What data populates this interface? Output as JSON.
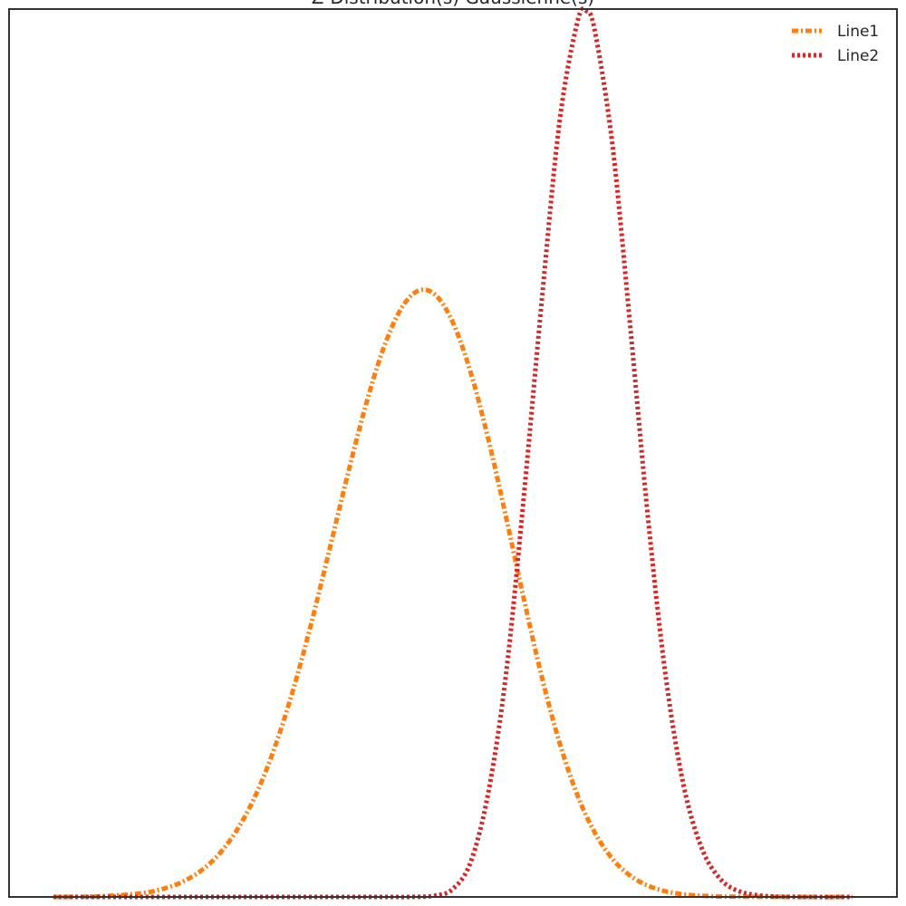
{
  "chart_data": {
    "type": "line",
    "title": "Z-Distribution(s) Gaussienne(s)",
    "xlabel": "",
    "ylabel": "",
    "xlim": [
      -5.0,
      5.0
    ],
    "ylim": [
      0,
      1.0
    ],
    "grid": false,
    "legend_position": "top-right",
    "series": [
      {
        "name": "Line1",
        "color": "#ff7f0e",
        "linestyle": "dashdot",
        "x": [
          -4.5,
          -4.0,
          -3.5,
          -3.2,
          -3.0,
          -2.8,
          -2.6,
          -2.4,
          -2.2,
          -2.0,
          -1.8,
          -1.6,
          -1.4,
          -1.2,
          -1.0,
          -0.8,
          -0.6,
          -0.4,
          -0.2,
          0.0,
          0.2,
          0.4,
          0.6,
          0.8,
          1.0,
          1.2,
          1.4,
          1.6,
          1.8,
          2.0,
          2.2,
          2.4,
          2.6,
          2.8,
          3.0,
          3.5,
          4.0,
          4.5
        ],
        "y": [
          0.0,
          0.0006,
          0.0043,
          0.0111,
          0.0194,
          0.0325,
          0.0523,
          0.0807,
          0.1197,
          0.1706,
          0.2334,
          0.3068,
          0.3874,
          0.4699,
          0.5475,
          0.6132,
          0.6598,
          0.6824,
          0.6782,
          0.6467,
          0.5904,
          0.5146,
          0.4266,
          0.3346,
          0.248,
          0.1737,
          0.115,
          0.0719,
          0.0424,
          0.0237,
          0.0125,
          0.0062,
          0.0029,
          0.0013,
          0.0005,
          0.0001,
          0.0,
          0.0
        ]
      },
      {
        "name": "Line2",
        "color": "#d62728",
        "linestyle": "dotted",
        "x": [
          -4.5,
          -1.0,
          -0.5,
          -0.2,
          0.0,
          0.2,
          0.4,
          0.6,
          0.8,
          1.0,
          1.2,
          1.4,
          1.5,
          1.6,
          1.8,
          2.0,
          2.2,
          2.4,
          2.6,
          2.8,
          3.0,
          3.2,
          3.5,
          4.0,
          4.5
        ],
        "y": [
          0.0,
          0.0,
          0.0,
          0.0015,
          0.0092,
          0.0395,
          0.1188,
          0.2531,
          0.4532,
          0.6718,
          0.8731,
          0.9851,
          0.998,
          0.9743,
          0.8433,
          0.6384,
          0.4229,
          0.2451,
          0.1244,
          0.0552,
          0.0214,
          0.0073,
          0.0011,
          0.0,
          0.0
        ]
      }
    ]
  }
}
